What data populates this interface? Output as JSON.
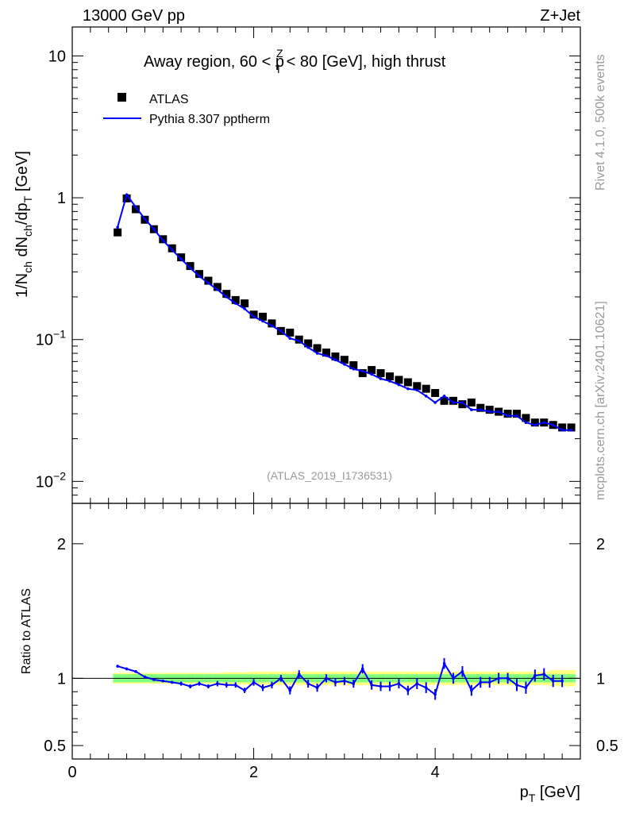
{
  "header": {
    "left": "13000 GeV pp",
    "right": "Z+Jet"
  },
  "side_labels": {
    "rivet": "Rivet 4.1.0,  500k events",
    "mcplots": "mcplots.cern.ch [arXiv:2401.10621]"
  },
  "chart_data": [
    {
      "type": "scatter",
      "title_parts": {
        "pre": "Away region, 60 < p",
        "sup": "Z",
        "sub": "T",
        "post": " < 80 [GeV], high thrust"
      },
      "watermark": "(ATLAS_2019_I1736531)",
      "ylabel_parts": [
        "1/N",
        "ch",
        " dN",
        "ch",
        "/dp",
        "T",
        " [GeV]"
      ],
      "yscale": "log",
      "ylim": [
        0.007,
        16
      ],
      "xlim": [
        0,
        5.6
      ],
      "y_ticks": [
        {
          "value": 10,
          "label": "10"
        },
        {
          "value": 1,
          "label": "1"
        },
        {
          "value": 0.1,
          "label": "10",
          "sup": "−1"
        },
        {
          "value": 0.01,
          "label": "10",
          "sup": "−2"
        }
      ],
      "legend": {
        "position": "top-left",
        "entries": [
          {
            "label": "ATLAS",
            "marker": "square",
            "color": "#000000"
          },
          {
            "label": "Pythia 8.307 pptherm",
            "marker": "line",
            "color": "#0000ff"
          }
        ]
      },
      "x": [
        0.5,
        0.6,
        0.7,
        0.8,
        0.9,
        1.0,
        1.1,
        1.2,
        1.3,
        1.4,
        1.5,
        1.6,
        1.7,
        1.8,
        1.9,
        2.0,
        2.1,
        2.2,
        2.3,
        2.4,
        2.5,
        2.6,
        2.7,
        2.8,
        2.9,
        3.0,
        3.1,
        3.2,
        3.3,
        3.4,
        3.5,
        3.6,
        3.7,
        3.8,
        3.9,
        4.0,
        4.1,
        4.2,
        4.3,
        4.4,
        4.5,
        4.6,
        4.7,
        4.8,
        4.9,
        5.0,
        5.1,
        5.2,
        5.3,
        5.4,
        5.5
      ],
      "series": [
        {
          "name": "ATLAS",
          "color": "#000000",
          "values": [
            0.57,
            0.99,
            0.83,
            0.7,
            0.6,
            0.51,
            0.44,
            0.38,
            0.33,
            0.29,
            0.26,
            0.235,
            0.21,
            0.19,
            0.18,
            0.15,
            0.145,
            0.13,
            0.115,
            0.112,
            0.1,
            0.094,
            0.087,
            0.081,
            0.076,
            0.072,
            0.066,
            0.058,
            0.061,
            0.058,
            0.055,
            0.052,
            0.05,
            0.047,
            0.045,
            0.042,
            0.037,
            0.037,
            0.035,
            0.036,
            0.033,
            0.032,
            0.031,
            0.03,
            0.03,
            0.028,
            0.026,
            0.026,
            0.025,
            0.024,
            0.024
          ]
        },
        {
          "name": "Pythia 8.307 pptherm",
          "color": "#0000ff",
          "values": [
            0.62,
            1.05,
            0.86,
            0.71,
            0.6,
            0.5,
            0.43,
            0.37,
            0.32,
            0.28,
            0.25,
            0.225,
            0.2,
            0.18,
            0.165,
            0.145,
            0.135,
            0.125,
            0.115,
            0.102,
            0.098,
            0.088,
            0.08,
            0.077,
            0.072,
            0.067,
            0.062,
            0.06,
            0.057,
            0.053,
            0.051,
            0.048,
            0.045,
            0.044,
            0.04,
            0.036,
            0.04,
            0.036,
            0.036,
            0.032,
            0.032,
            0.031,
            0.031,
            0.029,
            0.029,
            0.026,
            0.025,
            0.026,
            0.025,
            0.023,
            0.023
          ]
        }
      ]
    },
    {
      "type": "line",
      "ylabel": "Ratio to ATLAS",
      "xlabel_parts": {
        "base": "p",
        "sub": "T",
        "post": " [GeV]"
      },
      "ylim": [
        0.4,
        2.3
      ],
      "xlim": [
        0,
        5.6
      ],
      "y_ticks": [
        {
          "value": 2,
          "label": "2"
        },
        {
          "value": 1,
          "label": "1"
        },
        {
          "value": 0.5,
          "label": "0.5"
        }
      ],
      "x_ticks": [
        {
          "value": 0,
          "label": "0"
        },
        {
          "value": 2,
          "label": "2"
        },
        {
          "value": 4,
          "label": "4"
        }
      ],
      "band": {
        "inner_color": "#7fff7f",
        "outer_color": "#ffff80",
        "inner": [
          0.03,
          0.03,
          0.03,
          0.03,
          0.03,
          0.03,
          0.03,
          0.03,
          0.03,
          0.03,
          0.03,
          0.03,
          0.03,
          0.03,
          0.03,
          0.03,
          0.03,
          0.03,
          0.03,
          0.03,
          0.03,
          0.03,
          0.03,
          0.03,
          0.03,
          0.03,
          0.03,
          0.03,
          0.03,
          0.03,
          0.03,
          0.03,
          0.03,
          0.03,
          0.03,
          0.03,
          0.03,
          0.03,
          0.03,
          0.03,
          0.03,
          0.03,
          0.03,
          0.03,
          0.03,
          0.03,
          0.03,
          0.03,
          0.03,
          0.03,
          0.03
        ],
        "outer": [
          0.04,
          0.04,
          0.04,
          0.04,
          0.04,
          0.04,
          0.04,
          0.04,
          0.04,
          0.04,
          0.04,
          0.04,
          0.045,
          0.045,
          0.045,
          0.05,
          0.05,
          0.05,
          0.05,
          0.05,
          0.05,
          0.05,
          0.05,
          0.05,
          0.05,
          0.05,
          0.05,
          0.05,
          0.05,
          0.05,
          0.05,
          0.05,
          0.05,
          0.05,
          0.05,
          0.05,
          0.05,
          0.05,
          0.05,
          0.05,
          0.05,
          0.05,
          0.05,
          0.05,
          0.05,
          0.05,
          0.05,
          0.05,
          0.06,
          0.06,
          0.06
        ]
      },
      "series": [
        {
          "name": "Pythia 8.307 pptherm / ATLAS",
          "color": "#0000ff",
          "values": [
            1.09,
            1.07,
            1.05,
            1.01,
            0.99,
            0.98,
            0.97,
            0.96,
            0.94,
            0.96,
            0.94,
            0.96,
            0.95,
            0.95,
            0.91,
            0.97,
            0.93,
            0.95,
            1.0,
            0.91,
            1.03,
            0.96,
            0.93,
            1.0,
            0.97,
            0.98,
            0.96,
            1.07,
            0.95,
            0.94,
            0.94,
            0.96,
            0.91,
            0.96,
            0.93,
            0.88,
            1.11,
            1.0,
            1.05,
            0.91,
            0.97,
            0.97,
            1.0,
            1.0,
            0.95,
            0.93,
            1.02,
            1.03,
            0.98,
            0.98,
            null
          ],
          "errors": [
            0.01,
            0.01,
            0.01,
            0.01,
            0.01,
            0.01,
            0.01,
            0.015,
            0.015,
            0.015,
            0.015,
            0.02,
            0.02,
            0.02,
            0.02,
            0.025,
            0.025,
            0.025,
            0.025,
            0.03,
            0.03,
            0.03,
            0.03,
            0.03,
            0.03,
            0.03,
            0.03,
            0.035,
            0.035,
            0.035,
            0.035,
            0.035,
            0.035,
            0.04,
            0.04,
            0.04,
            0.04,
            0.04,
            0.04,
            0.04,
            0.04,
            0.04,
            0.04,
            0.04,
            0.045,
            0.045,
            0.045,
            0.045,
            0.045,
            0.045,
            0
          ]
        }
      ]
    }
  ]
}
